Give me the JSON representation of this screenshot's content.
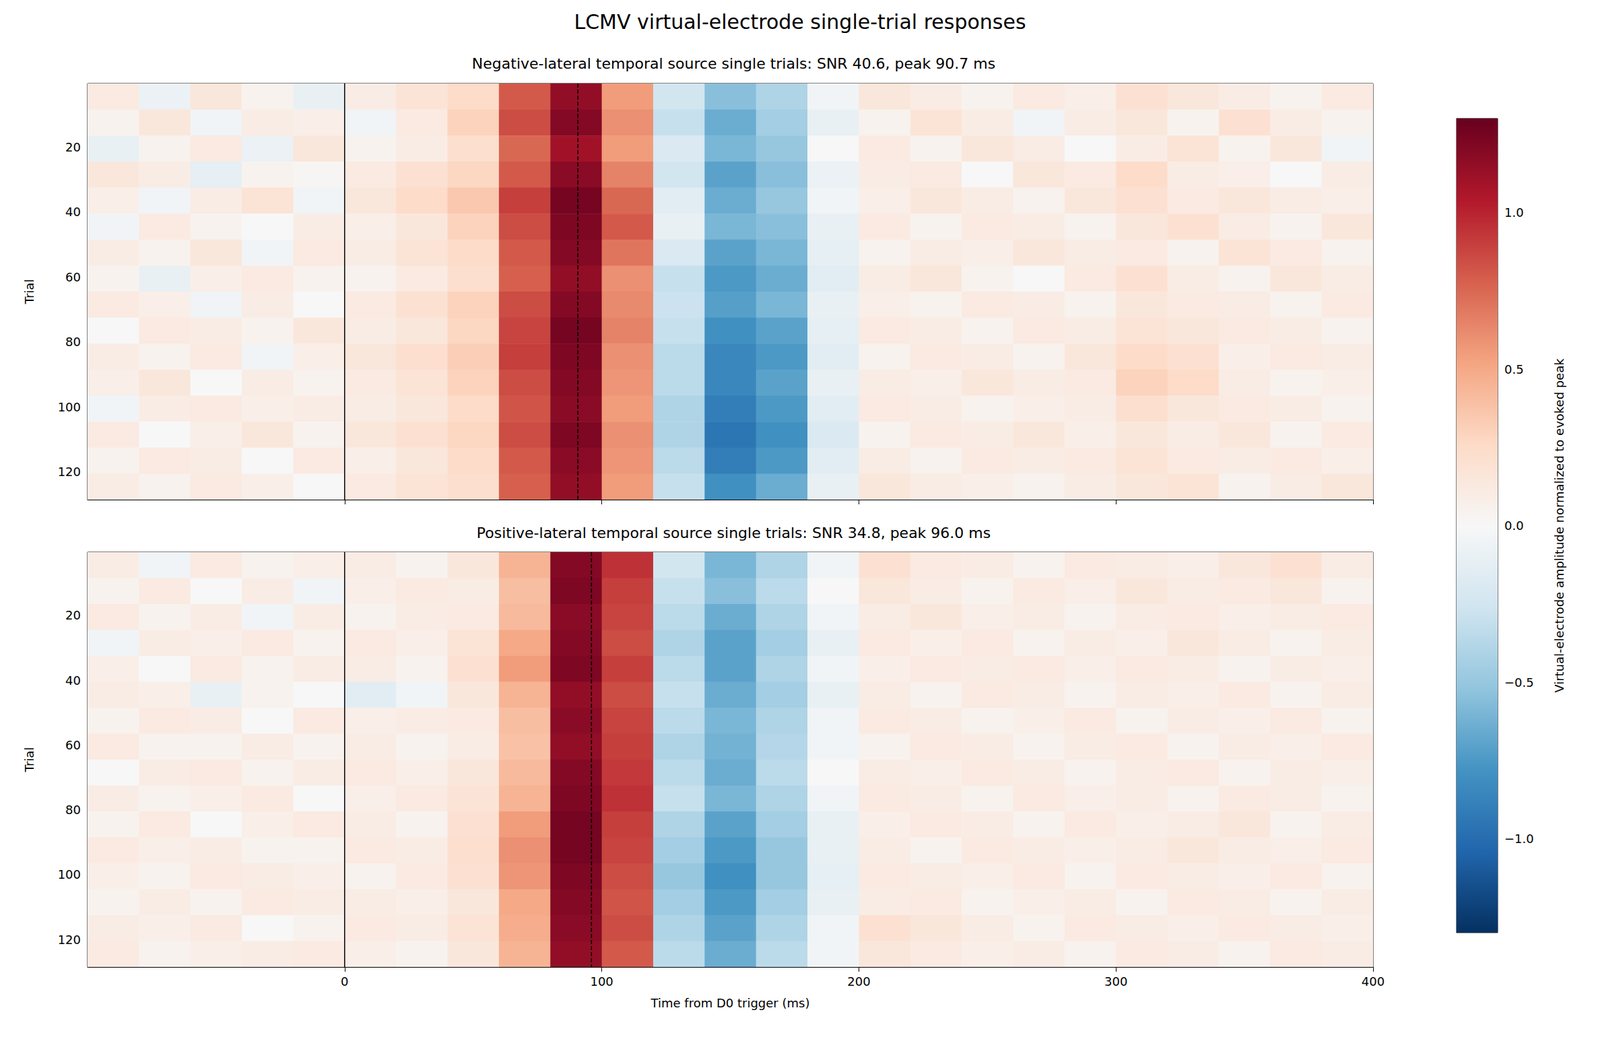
{
  "chart_data": {
    "type": "heatmap",
    "title": "LCMV virtual-electrode single-trial responses",
    "xlabel": "Time from D0 trigger (ms)",
    "ylabel": "Trial",
    "xlim": [
      -100,
      400
    ],
    "xticks": [
      0,
      100,
      200,
      300,
      400
    ],
    "ylim": [
      0.5,
      128.5
    ],
    "yticks": [
      20,
      40,
      60,
      80,
      100,
      120
    ],
    "trigger_ms": 0,
    "time_edges": [
      -100,
      -80,
      -60,
      -40,
      -20,
      0,
      20,
      40,
      60,
      80,
      100,
      120,
      140,
      160,
      180,
      200,
      220,
      240,
      260,
      280,
      300,
      320,
      340,
      360,
      380,
      400
    ],
    "trial_edges": [
      0.5,
      8.5,
      16.5,
      24.5,
      32.5,
      40.5,
      48.5,
      56.5,
      64.5,
      72.5,
      80.5,
      88.5,
      96.5,
      104.5,
      112.5,
      120.5,
      128.5
    ],
    "colorbar": {
      "label": "Virtual-electrode amplitude normalized to evoked peak",
      "range": [
        -1.3,
        1.3
      ],
      "ticks": [
        {
          "value": -1.0,
          "label": "−1.0"
        },
        {
          "value": -0.5,
          "label": "−0.5"
        },
        {
          "value": 0.0,
          "label": "0.0"
        },
        {
          "value": 0.5,
          "label": "0.5"
        },
        {
          "value": 1.0,
          "label": "1.0"
        }
      ]
    },
    "panels": [
      {
        "title": "Negative-lateral temporal source single trials: SNR 40.6, peak 90.7 ms",
        "peak_ms": 90.7,
        "cells": [
          [
            0.12,
            -0.08,
            0.15,
            0.05,
            -0.1,
            0.1,
            0.18,
            0.25,
            0.8,
            1.15,
            0.55,
            -0.25,
            -0.55,
            -0.4,
            -0.05,
            0.15,
            0.1,
            0.05,
            0.12,
            0.08,
            0.2,
            0.15,
            0.1,
            0.05,
            0.12
          ],
          [
            0.05,
            0.15,
            -0.05,
            0.1,
            0.08,
            -0.05,
            0.12,
            0.3,
            0.85,
            1.2,
            0.6,
            -0.3,
            -0.65,
            -0.45,
            -0.1,
            0.05,
            0.18,
            0.1,
            -0.05,
            0.1,
            0.15,
            0.05,
            0.2,
            0.1,
            0.05
          ],
          [
            -0.1,
            0.05,
            0.12,
            -0.08,
            0.15,
            0.05,
            0.1,
            0.22,
            0.75,
            1.1,
            0.55,
            -0.2,
            -0.6,
            -0.5,
            0.0,
            0.12,
            0.05,
            0.15,
            0.1,
            0.0,
            0.1,
            0.18,
            0.05,
            0.15,
            -0.05
          ],
          [
            0.15,
            0.1,
            -0.12,
            0.05,
            0.02,
            0.12,
            0.2,
            0.28,
            0.8,
            1.18,
            0.65,
            -0.25,
            -0.7,
            -0.55,
            -0.08,
            0.1,
            0.12,
            0.0,
            0.15,
            0.12,
            0.25,
            0.1,
            0.08,
            0.0,
            0.1
          ],
          [
            0.08,
            -0.05,
            0.1,
            0.18,
            -0.05,
            0.15,
            0.25,
            0.35,
            0.9,
            1.25,
            0.75,
            -0.15,
            -0.65,
            -0.5,
            -0.05,
            0.08,
            0.15,
            0.1,
            0.05,
            0.15,
            0.2,
            0.12,
            0.15,
            0.1,
            0.08
          ],
          [
            -0.05,
            0.12,
            0.05,
            0.0,
            0.1,
            0.08,
            0.15,
            0.3,
            0.85,
            1.22,
            0.8,
            -0.1,
            -0.6,
            -0.55,
            -0.1,
            0.12,
            0.05,
            0.12,
            0.1,
            0.05,
            0.15,
            0.2,
            0.1,
            0.05,
            0.15
          ],
          [
            0.1,
            0.05,
            0.15,
            -0.05,
            0.12,
            0.1,
            0.18,
            0.25,
            0.8,
            1.2,
            0.7,
            -0.2,
            -0.7,
            -0.6,
            -0.12,
            0.05,
            0.1,
            0.08,
            0.15,
            0.1,
            0.12,
            0.05,
            0.18,
            0.12,
            0.05
          ],
          [
            0.05,
            -0.1,
            0.08,
            0.12,
            0.05,
            0.05,
            0.12,
            0.22,
            0.78,
            1.15,
            0.6,
            -0.3,
            -0.75,
            -0.65,
            -0.15,
            0.1,
            0.15,
            0.05,
            0.0,
            0.12,
            0.2,
            0.1,
            0.05,
            0.15,
            0.1
          ],
          [
            0.12,
            0.08,
            -0.05,
            0.1,
            0.0,
            0.12,
            0.2,
            0.3,
            0.85,
            1.2,
            0.62,
            -0.28,
            -0.72,
            -0.6,
            -0.1,
            0.08,
            0.05,
            0.12,
            0.1,
            0.05,
            0.15,
            0.12,
            0.1,
            0.05,
            0.12
          ],
          [
            0.0,
            0.12,
            0.1,
            0.05,
            0.15,
            0.1,
            0.15,
            0.28,
            0.88,
            1.25,
            0.65,
            -0.3,
            -0.8,
            -0.7,
            -0.12,
            0.12,
            0.1,
            0.05,
            0.12,
            0.1,
            0.18,
            0.15,
            0.12,
            0.1,
            0.05
          ],
          [
            0.1,
            0.05,
            0.12,
            -0.05,
            0.08,
            0.15,
            0.22,
            0.32,
            0.9,
            1.22,
            0.6,
            -0.35,
            -0.85,
            -0.75,
            -0.15,
            0.05,
            0.12,
            0.1,
            0.05,
            0.15,
            0.25,
            0.2,
            0.08,
            0.12,
            0.1
          ],
          [
            0.08,
            0.15,
            0.0,
            0.1,
            0.05,
            0.12,
            0.18,
            0.3,
            0.85,
            1.2,
            0.58,
            -0.35,
            -0.85,
            -0.7,
            -0.1,
            0.1,
            0.08,
            0.15,
            0.1,
            0.12,
            0.3,
            0.25,
            0.1,
            0.05,
            0.08
          ],
          [
            -0.05,
            0.1,
            0.12,
            0.08,
            0.1,
            0.1,
            0.15,
            0.25,
            0.82,
            1.18,
            0.55,
            -0.4,
            -0.9,
            -0.75,
            -0.15,
            0.12,
            0.1,
            0.05,
            0.08,
            0.1,
            0.22,
            0.15,
            0.12,
            0.1,
            0.05
          ],
          [
            0.12,
            0.0,
            0.08,
            0.15,
            0.05,
            0.15,
            0.2,
            0.28,
            0.85,
            1.22,
            0.6,
            -0.4,
            -0.95,
            -0.8,
            -0.2,
            0.05,
            0.12,
            0.1,
            0.15,
            0.08,
            0.15,
            0.1,
            0.15,
            0.05,
            0.12
          ],
          [
            0.05,
            0.12,
            0.1,
            0.0,
            0.12,
            0.08,
            0.15,
            0.25,
            0.8,
            1.18,
            0.58,
            -0.35,
            -0.9,
            -0.75,
            -0.15,
            0.1,
            0.05,
            0.12,
            0.1,
            0.12,
            0.18,
            0.12,
            0.1,
            0.12,
            0.08
          ],
          [
            0.1,
            0.05,
            0.12,
            0.08,
            0.0,
            0.12,
            0.18,
            0.22,
            0.78,
            1.15,
            0.55,
            -0.3,
            -0.8,
            -0.65,
            -0.1,
            0.15,
            0.1,
            0.08,
            0.05,
            0.1,
            0.15,
            0.18,
            0.05,
            0.1,
            0.15
          ]
        ]
      },
      {
        "title": "Positive-lateral temporal source single trials: SNR 34.8, peak 96.0 ms",
        "peak_ms": 96.0,
        "cells": [
          [
            0.1,
            -0.05,
            0.12,
            0.05,
            0.08,
            0.1,
            0.05,
            0.15,
            0.45,
            1.2,
            0.95,
            -0.25,
            -0.6,
            -0.4,
            -0.05,
            0.2,
            0.12,
            0.1,
            0.05,
            0.12,
            0.1,
            0.08,
            0.15,
            0.2,
            0.1
          ],
          [
            0.05,
            0.12,
            0.0,
            0.1,
            -0.05,
            0.08,
            0.12,
            0.1,
            0.4,
            1.22,
            0.9,
            -0.3,
            -0.55,
            -0.35,
            0.0,
            0.15,
            0.1,
            0.05,
            0.12,
            0.08,
            0.15,
            0.1,
            0.12,
            0.15,
            0.05
          ],
          [
            0.12,
            0.05,
            0.1,
            -0.05,
            0.1,
            0.05,
            0.1,
            0.12,
            0.42,
            1.18,
            0.88,
            -0.35,
            -0.65,
            -0.4,
            -0.05,
            0.1,
            0.15,
            0.08,
            0.1,
            0.05,
            0.1,
            0.12,
            0.08,
            0.1,
            0.12
          ],
          [
            -0.05,
            0.1,
            0.08,
            0.12,
            0.05,
            0.12,
            0.08,
            0.18,
            0.5,
            1.2,
            0.85,
            -0.4,
            -0.7,
            -0.45,
            -0.1,
            0.12,
            0.08,
            0.12,
            0.05,
            0.1,
            0.08,
            0.15,
            0.1,
            0.05,
            0.1
          ],
          [
            0.08,
            0.0,
            0.12,
            0.05,
            0.1,
            0.1,
            0.05,
            0.2,
            0.55,
            1.22,
            0.9,
            -0.35,
            -0.7,
            -0.4,
            -0.05,
            0.08,
            0.12,
            0.1,
            0.12,
            0.08,
            0.12,
            0.1,
            0.05,
            0.1,
            0.08
          ],
          [
            0.1,
            0.08,
            -0.1,
            0.05,
            0.0,
            -0.15,
            -0.05,
            0.15,
            0.45,
            1.15,
            0.85,
            -0.3,
            -0.65,
            -0.45,
            -0.1,
            0.1,
            0.05,
            0.12,
            0.1,
            0.05,
            0.1,
            0.08,
            0.12,
            0.05,
            0.1
          ],
          [
            0.05,
            0.12,
            0.1,
            0.0,
            0.12,
            0.08,
            0.1,
            0.12,
            0.4,
            1.18,
            0.88,
            -0.35,
            -0.6,
            -0.4,
            -0.05,
            0.12,
            0.1,
            0.05,
            0.08,
            0.12,
            0.05,
            0.1,
            0.08,
            0.12,
            0.05
          ],
          [
            0.12,
            0.05,
            0.05,
            0.1,
            0.05,
            0.1,
            0.05,
            0.1,
            0.38,
            1.15,
            0.9,
            -0.4,
            -0.62,
            -0.38,
            -0.05,
            0.05,
            0.12,
            0.1,
            0.05,
            0.1,
            0.12,
            0.05,
            0.1,
            0.08,
            0.12
          ],
          [
            0.0,
            0.1,
            0.12,
            0.05,
            0.1,
            0.12,
            0.08,
            0.15,
            0.42,
            1.2,
            0.92,
            -0.35,
            -0.65,
            -0.35,
            0.0,
            0.1,
            0.08,
            0.12,
            0.1,
            0.05,
            0.1,
            0.12,
            0.05,
            0.1,
            0.08
          ],
          [
            0.1,
            0.05,
            0.08,
            0.12,
            0.0,
            0.08,
            0.12,
            0.18,
            0.45,
            1.22,
            0.95,
            -0.3,
            -0.6,
            -0.4,
            -0.05,
            0.12,
            0.1,
            0.05,
            0.12,
            0.08,
            0.1,
            0.05,
            0.12,
            0.1,
            0.05
          ],
          [
            0.05,
            0.12,
            0.0,
            0.08,
            0.12,
            0.1,
            0.05,
            0.2,
            0.55,
            1.25,
            0.9,
            -0.4,
            -0.7,
            -0.45,
            -0.1,
            0.08,
            0.12,
            0.1,
            0.05,
            0.12,
            0.08,
            0.1,
            0.15,
            0.05,
            0.1
          ],
          [
            0.12,
            0.08,
            0.1,
            0.05,
            0.05,
            0.12,
            0.1,
            0.22,
            0.6,
            1.25,
            0.88,
            -0.45,
            -0.75,
            -0.5,
            -0.1,
            0.1,
            0.05,
            0.12,
            0.1,
            0.08,
            0.1,
            0.15,
            0.1,
            0.08,
            0.12
          ],
          [
            0.08,
            0.05,
            0.12,
            0.1,
            0.08,
            0.05,
            0.12,
            0.2,
            0.58,
            1.22,
            0.85,
            -0.5,
            -0.8,
            -0.5,
            -0.12,
            0.12,
            0.1,
            0.08,
            0.12,
            0.05,
            0.12,
            0.1,
            0.08,
            0.12,
            0.05
          ],
          [
            0.05,
            0.1,
            0.05,
            0.12,
            0.1,
            0.1,
            0.08,
            0.15,
            0.5,
            1.2,
            0.82,
            -0.45,
            -0.75,
            -0.45,
            -0.1,
            0.1,
            0.12,
            0.05,
            0.08,
            0.1,
            0.05,
            0.12,
            0.1,
            0.05,
            0.1
          ],
          [
            0.1,
            0.08,
            0.12,
            0.0,
            0.05,
            0.12,
            0.1,
            0.18,
            0.48,
            1.18,
            0.85,
            -0.4,
            -0.7,
            -0.4,
            -0.05,
            0.2,
            0.15,
            0.1,
            0.05,
            0.12,
            0.1,
            0.08,
            0.12,
            0.1,
            0.08
          ],
          [
            0.12,
            0.05,
            0.08,
            0.1,
            0.12,
            0.08,
            0.05,
            0.15,
            0.45,
            1.15,
            0.8,
            -0.35,
            -0.65,
            -0.35,
            -0.05,
            0.15,
            0.12,
            0.08,
            0.1,
            0.05,
            0.12,
            0.1,
            0.05,
            0.12,
            0.1
          ]
        ]
      }
    ]
  }
}
